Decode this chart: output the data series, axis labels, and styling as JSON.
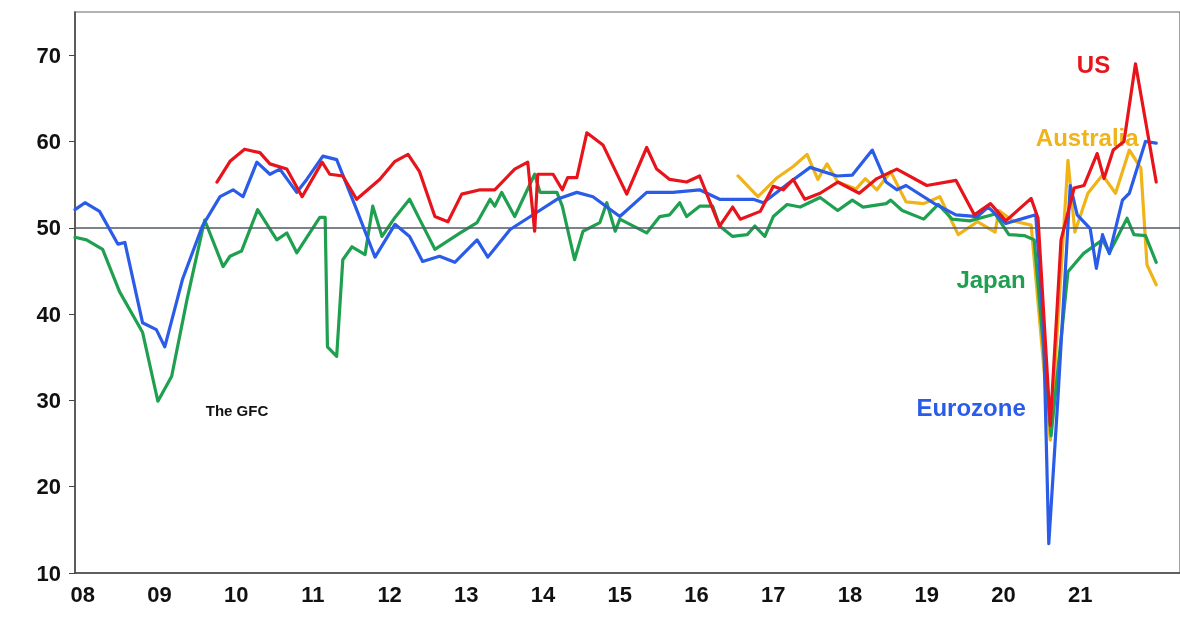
{
  "chart_data": {
    "type": "line",
    "marker": "none",
    "line_style": "solid",
    "grid": false,
    "legend": false,
    "xlim": [
      2007.9,
      2022.3
    ],
    "ylim": [
      10,
      75
    ],
    "xticks": [
      {
        "value": 2008,
        "label": "08"
      },
      {
        "value": 2009,
        "label": "09"
      },
      {
        "value": 2010,
        "label": "10"
      },
      {
        "value": 2011,
        "label": "11"
      },
      {
        "value": 2012,
        "label": "12"
      },
      {
        "value": 2013,
        "label": "13"
      },
      {
        "value": 2014,
        "label": "14"
      },
      {
        "value": 2015,
        "label": "15"
      },
      {
        "value": 2016,
        "label": "16"
      },
      {
        "value": 2017,
        "label": "17"
      },
      {
        "value": 2018,
        "label": "18"
      },
      {
        "value": 2019,
        "label": "19"
      },
      {
        "value": 2020,
        "label": "20"
      },
      {
        "value": 2021,
        "label": "21"
      }
    ],
    "yticks": [
      10,
      20,
      30,
      40,
      50,
      60,
      70
    ],
    "ref_lines": [
      {
        "axis": "y",
        "value": 50,
        "color": "#505a64"
      }
    ],
    "annotations": [
      "The GFC"
    ],
    "series": [
      {
        "name": "Australia",
        "color": "#f0b419",
        "x": [
          2016.54,
          2016.8,
          2017.05,
          2017.26,
          2017.44,
          2017.58,
          2017.7,
          2017.84,
          2018.08,
          2018.2,
          2018.35,
          2018.53,
          2018.73,
          2018.96,
          2019.17,
          2019.41,
          2019.66,
          2019.89,
          2019.94,
          2020.12,
          2020.36,
          2020.61,
          2020.75,
          2020.84,
          2020.93,
          2021.1,
          2021.29,
          2021.46,
          2021.64,
          2021.79,
          2021.87,
          2021.99
        ],
        "values": [
          56.0,
          53.6,
          55.8,
          57.1,
          58.5,
          55.6,
          57.4,
          55.3,
          54.5,
          55.7,
          54.4,
          56.5,
          53.0,
          52.8,
          53.6,
          49.2,
          50.7,
          49.5,
          52.0,
          50.8,
          50.3,
          25.4,
          44.9,
          57.8,
          49.5,
          54.0,
          56.1,
          54.0,
          59.0,
          56.9,
          45.7,
          43.4
        ]
      },
      {
        "name": "Japan",
        "color": "#1fa050",
        "x": [
          2007.9,
          2008.05,
          2008.26,
          2008.48,
          2008.78,
          2008.98,
          2009.16,
          2009.36,
          2009.59,
          2009.83,
          2009.92,
          2010.07,
          2010.28,
          2010.53,
          2010.66,
          2010.79,
          2011.09,
          2011.16,
          2011.19,
          2011.31,
          2011.39,
          2011.51,
          2011.68,
          2011.78,
          2011.9,
          2012.07,
          2012.26,
          2012.39,
          2012.59,
          2012.92,
          2013.14,
          2013.31,
          2013.37,
          2013.46,
          2013.63,
          2013.89,
          2013.96,
          2014.18,
          2014.25,
          2014.41,
          2014.52,
          2014.74,
          2014.83,
          2014.94,
          2015.0,
          2015.35,
          2015.52,
          2015.65,
          2015.78,
          2015.87,
          2016.04,
          2016.21,
          2016.3,
          2016.47,
          2016.66,
          2016.76,
          2016.89,
          2017.0,
          2017.18,
          2017.35,
          2017.61,
          2017.84,
          2018.03,
          2018.17,
          2018.47,
          2018.53,
          2018.68,
          2018.96,
          2019.15,
          2019.33,
          2019.56,
          2019.89,
          2020.07,
          2020.27,
          2020.4,
          2020.62,
          2020.84,
          2021.04,
          2021.29,
          2021.38,
          2021.61,
          2021.7,
          2021.85,
          2021.99
        ],
        "values": [
          48.9,
          48.6,
          47.5,
          42.6,
          37.9,
          29.9,
          32.8,
          41.7,
          50.9,
          45.5,
          46.7,
          47.3,
          52.1,
          48.6,
          49.4,
          47.1,
          51.2,
          51.2,
          36.2,
          35.1,
          46.3,
          47.8,
          46.9,
          52.5,
          49.0,
          51.2,
          53.3,
          51.0,
          47.5,
          49.4,
          50.6,
          53.3,
          52.5,
          54.1,
          51.3,
          56.2,
          54.1,
          54.1,
          52.5,
          46.3,
          49.6,
          50.6,
          52.9,
          49.6,
          51.0,
          49.4,
          51.3,
          51.5,
          52.9,
          51.3,
          52.5,
          52.5,
          50.2,
          49.0,
          49.2,
          50.2,
          49.0,
          51.3,
          52.7,
          52.4,
          53.5,
          52.0,
          53.2,
          52.4,
          52.8,
          53.2,
          52.0,
          51.0,
          52.7,
          51.0,
          50.8,
          51.6,
          49.2,
          49.1,
          48.6,
          25.9,
          44.9,
          47.0,
          48.6,
          47.1,
          51.1,
          49.2,
          49.1,
          46.0
        ]
      },
      {
        "name": "Eurozone",
        "color": "#2a5ce8",
        "x": [
          2007.9,
          2008.03,
          2008.22,
          2008.46,
          2008.55,
          2008.78,
          2008.96,
          2009.07,
          2009.3,
          2009.56,
          2009.79,
          2009.96,
          2010.09,
          2010.27,
          2010.44,
          2010.57,
          2010.79,
          2010.92,
          2011.13,
          2011.31,
          2011.57,
          2011.81,
          2012.07,
          2012.26,
          2012.43,
          2012.65,
          2012.85,
          2013.14,
          2013.28,
          2013.57,
          2013.92,
          2014.18,
          2014.44,
          2014.65,
          2015.0,
          2015.35,
          2015.69,
          2016.04,
          2016.3,
          2016.74,
          2016.87,
          2017.22,
          2017.48,
          2017.83,
          2018.03,
          2018.29,
          2018.47,
          2018.61,
          2018.73,
          2019.1,
          2019.38,
          2019.66,
          2019.8,
          2020.03,
          2020.42,
          2020.52,
          2020.59,
          2020.71,
          2020.87,
          2020.96,
          2021.13,
          2021.21,
          2021.29,
          2021.38,
          2021.55,
          2021.64,
          2021.85,
          2021.99
        ],
        "values": [
          52.1,
          52.9,
          51.9,
          48.1,
          48.3,
          39.0,
          38.2,
          36.2,
          44.0,
          50.2,
          53.6,
          54.4,
          53.6,
          57.6,
          56.2,
          56.8,
          54.1,
          55.6,
          58.3,
          57.9,
          52.1,
          46.6,
          50.4,
          49.0,
          46.1,
          46.7,
          46.0,
          48.6,
          46.6,
          49.8,
          51.8,
          53.3,
          54.1,
          53.6,
          51.3,
          54.1,
          54.1,
          54.4,
          53.3,
          53.3,
          52.9,
          55.3,
          57.0,
          56.0,
          56.1,
          59.0,
          55.3,
          54.4,
          54.9,
          52.8,
          51.5,
          51.3,
          52.4,
          50.5,
          51.5,
          38.7,
          13.4,
          30.4,
          54.9,
          51.5,
          49.9,
          45.3,
          49.2,
          47.0,
          53.2,
          54.0,
          60.0,
          59.8
        ]
      },
      {
        "name": "US",
        "color": "#e8141c",
        "x": [
          2009.75,
          2009.92,
          2010.11,
          2010.31,
          2010.44,
          2010.66,
          2010.86,
          2011.12,
          2011.22,
          2011.39,
          2011.57,
          2011.87,
          2012.07,
          2012.24,
          2012.39,
          2012.59,
          2012.76,
          2012.94,
          2013.18,
          2013.37,
          2013.63,
          2013.8,
          2013.89,
          2013.93,
          2014.13,
          2014.25,
          2014.32,
          2014.44,
          2014.57,
          2014.78,
          2015.09,
          2015.35,
          2015.48,
          2015.65,
          2015.87,
          2016.04,
          2016.3,
          2016.47,
          2016.57,
          2016.83,
          2017.0,
          2017.13,
          2017.26,
          2017.41,
          2017.61,
          2017.84,
          2018.12,
          2018.35,
          2018.61,
          2019.0,
          2019.38,
          2019.62,
          2019.83,
          2020.03,
          2020.36,
          2020.45,
          2020.61,
          2020.75,
          2020.92,
          2021.05,
          2021.22,
          2021.31,
          2021.43,
          2021.57,
          2021.72,
          2021.99
        ],
        "values": [
          55.3,
          57.7,
          59.1,
          58.7,
          57.4,
          56.8,
          53.6,
          57.6,
          56.2,
          56.0,
          53.3,
          55.6,
          57.7,
          58.5,
          56.5,
          51.3,
          50.7,
          53.9,
          54.4,
          54.4,
          56.8,
          57.6,
          49.6,
          56.2,
          56.2,
          54.4,
          55.8,
          55.8,
          61.0,
          59.6,
          53.9,
          59.3,
          56.8,
          55.6,
          55.3,
          56.0,
          50.2,
          52.4,
          51.0,
          51.9,
          54.8,
          54.4,
          55.6,
          53.3,
          54.0,
          55.3,
          54.0,
          55.7,
          56.8,
          54.9,
          55.5,
          51.5,
          52.8,
          50.8,
          53.4,
          51.1,
          27.1,
          48.6,
          54.6,
          54.9,
          58.6,
          55.7,
          59.0,
          60.0,
          69.0,
          55.3
        ]
      }
    ]
  }
}
